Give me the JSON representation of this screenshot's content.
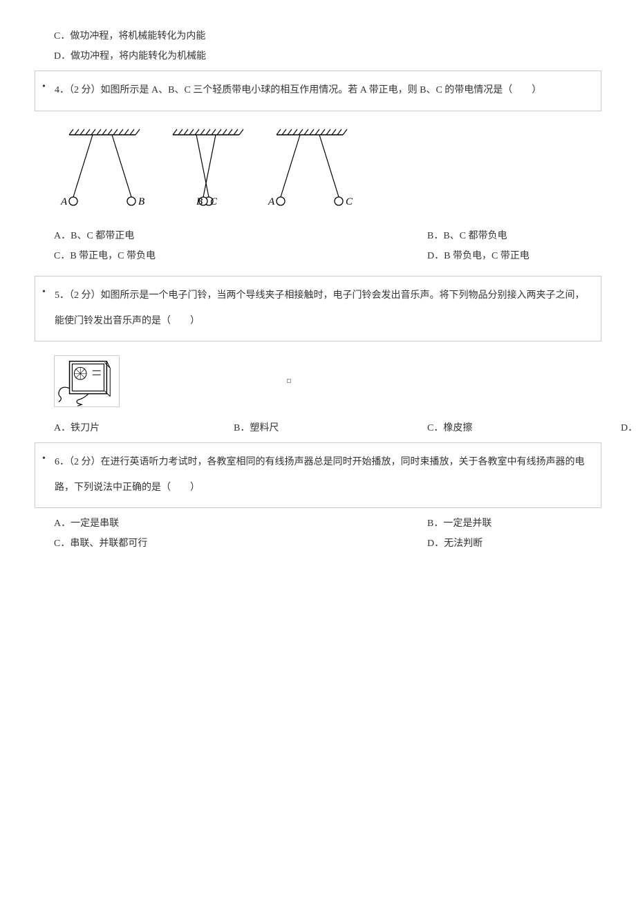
{
  "prev_options": {
    "C": "C．做功冲程，将机械能转化为内能",
    "D": "D．做功冲程，将内能转化为机械能"
  },
  "q4": {
    "text": "4．（2 分）如图所示是 A、B、C 三个轻质带电小球的相互作用情况。若 A 带正电，则 B、C 的带电情况是（　　）",
    "figure": {
      "pairs": [
        {
          "left_label": "A",
          "right_label": "B",
          "mode": "repel"
        },
        {
          "left_label": "B",
          "right_label": "C",
          "mode": "attract"
        },
        {
          "left_label": "A",
          "right_label": "C",
          "mode": "repel"
        }
      ],
      "hatch_color": "#000000",
      "line_color": "#000000",
      "ball_radius": 6,
      "group_width": 140,
      "group_height": 130
    },
    "options": {
      "A": "A．B、C 都带正电",
      "B": "B．B、C 都带负电",
      "C": "C．B 带正电，C 带负电",
      "D": "D．B 带负电，C 带正电"
    }
  },
  "q5": {
    "text": "5．（2 分）如图所示是一个电子门铃，当两个导线夹子相接触时，电子门铃会发出音乐声。将下列物品分别接入两夹子之间，能使门铃发出音乐声的是（　　）",
    "options": {
      "A": "A．铁刀片",
      "B": "B．塑料尺",
      "C": "C．橡皮擦",
      "D": "D．物"
    }
  },
  "q6": {
    "text": "6．（2 分）在进行英语听力考试时，各教室相同的有线扬声器总是同时开始播放，同时束播放，关于各教室中有线扬声器的电路，下列说法中正确的是（　　）",
    "options": {
      "A": "A．一定是串联",
      "B": "B．一定是并联",
      "C": "C．串联、并联都可行",
      "D": "D．无法判断"
    }
  }
}
